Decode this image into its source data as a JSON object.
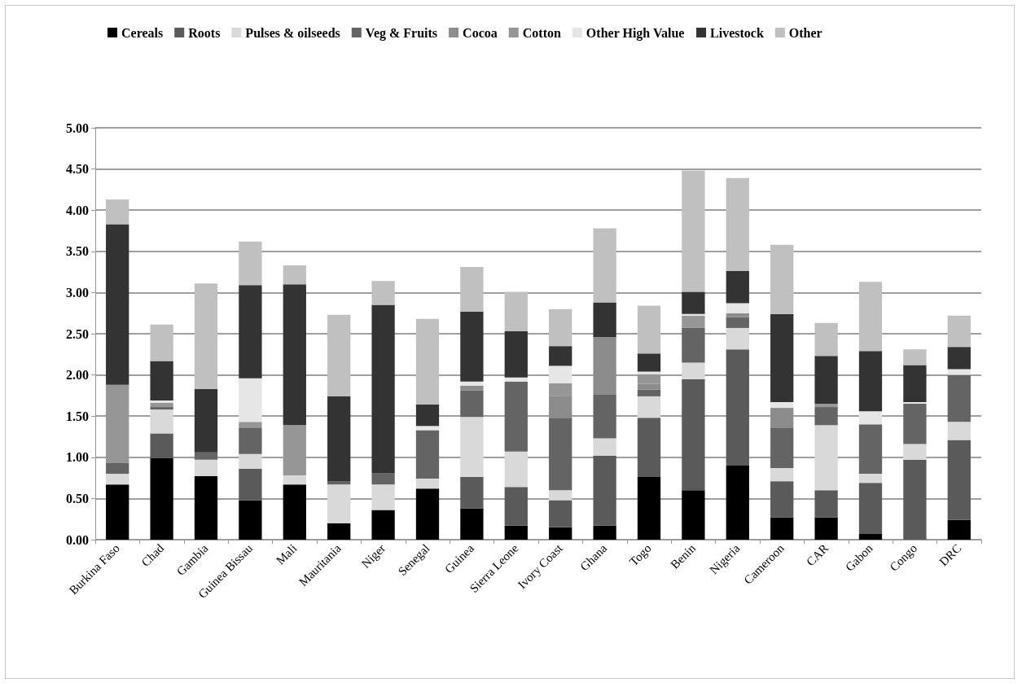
{
  "chart_data": {
    "type": "bar",
    "stacked": true,
    "legend": "top",
    "grid": "y",
    "categories": [
      "Burkina Faso",
      "Chad",
      "Gambia",
      "Guinea Bissau",
      "Mali",
      "Mauritania",
      "Niger",
      "Senegal",
      "Guinea",
      "Sierra Leone",
      "Ivory Coast",
      "Ghana",
      "Togo",
      "Benin",
      "Nigeria",
      "Cameroon",
      "CAR",
      "Gabon",
      "Congo",
      "DRC"
    ],
    "ylim": [
      0,
      5
    ],
    "yticks": [
      {
        "value": 0,
        "label": "0.00"
      },
      {
        "value": 0.5,
        "label": "0.50"
      },
      {
        "value": 1,
        "label": "1.00"
      },
      {
        "value": 1.5,
        "label": "1.50"
      },
      {
        "value": 2,
        "label": "2.00"
      },
      {
        "value": 2.5,
        "label": "2.50"
      },
      {
        "value": 3,
        "label": "3.00"
      },
      {
        "value": 3.5,
        "label": "3.50"
      },
      {
        "value": 4,
        "label": "4.00"
      },
      {
        "value": 4.5,
        "label": "4.50"
      },
      {
        "value": 5,
        "label": "5.00"
      }
    ],
    "series": [
      {
        "name": "Cereals",
        "color": "#000000",
        "values": [
          0.67,
          0.99,
          0.77,
          0.48,
          0.67,
          0.2,
          0.36,
          0.62,
          0.38,
          0.17,
          0.15,
          0.17,
          0.76,
          0.6,
          0.9,
          0.27,
          0.27,
          0.07,
          0,
          0.24
        ]
      },
      {
        "name": "Roots",
        "color": "#5a5a5a",
        "values": [
          0,
          0.3,
          0,
          0.38,
          0,
          0,
          0,
          0,
          0.38,
          0.47,
          0.33,
          0.85,
          0.72,
          1.35,
          1.41,
          0.44,
          0.33,
          0.62,
          0.97,
          0.97
        ]
      },
      {
        "name": "Pulses & oilseeds",
        "color": "#d9d9d9",
        "values": [
          0.13,
          0.29,
          0.2,
          0.18,
          0.11,
          0.47,
          0.31,
          0.12,
          0.73,
          0.43,
          0.12,
          0.21,
          0.26,
          0.2,
          0.26,
          0.16,
          0.79,
          0.11,
          0.19,
          0.22
        ]
      },
      {
        "name": "Veg & Fruits",
        "color": "#646464",
        "values": [
          0.13,
          0.03,
          0.09,
          0.32,
          0,
          0.04,
          0.14,
          0.59,
          0.32,
          0.85,
          0.88,
          0.53,
          0.08,
          0.42,
          0.13,
          0.49,
          0.22,
          0.6,
          0.49,
          0.57
        ]
      },
      {
        "name": "Cocoa",
        "color": "#8c8c8c",
        "values": [
          0,
          0,
          0,
          0,
          0,
          0,
          0,
          0,
          0.06,
          0,
          0.26,
          0.7,
          0.07,
          0,
          0.05,
          0.24,
          0,
          0,
          0,
          0
        ]
      },
      {
        "name": "Cotton",
        "color": "#969696",
        "values": [
          0.95,
          0.05,
          0,
          0.07,
          0.61,
          0,
          0,
          0,
          0,
          0,
          0.16,
          0,
          0.12,
          0.15,
          0,
          0,
          0.04,
          0,
          0,
          0
        ]
      },
      {
        "name": "Other High Value",
        "color": "#e6e6e6",
        "values": [
          0,
          0.03,
          0,
          0.53,
          0,
          0,
          0,
          0.05,
          0.05,
          0.05,
          0.21,
          0,
          0.03,
          0.02,
          0.12,
          0.07,
          0,
          0.16,
          0.02,
          0.07
        ]
      },
      {
        "name": "Livestock",
        "color": "#333333",
        "values": [
          1.95,
          0.48,
          0.77,
          1.13,
          1.71,
          1.03,
          2.04,
          0.26,
          0.85,
          0.56,
          0.24,
          0.42,
          0.22,
          0.27,
          0.39,
          1.07,
          0.58,
          0.73,
          0.45,
          0.27
        ]
      },
      {
        "name": "Other",
        "color": "#c0c0c0",
        "values": [
          0.3,
          0.44,
          1.28,
          0.53,
          0.23,
          0.99,
          0.29,
          1.04,
          0.54,
          0.48,
          0.45,
          0.9,
          0.58,
          1.47,
          1.13,
          0.84,
          0.4,
          0.84,
          0.19,
          0.38
        ]
      }
    ]
  }
}
